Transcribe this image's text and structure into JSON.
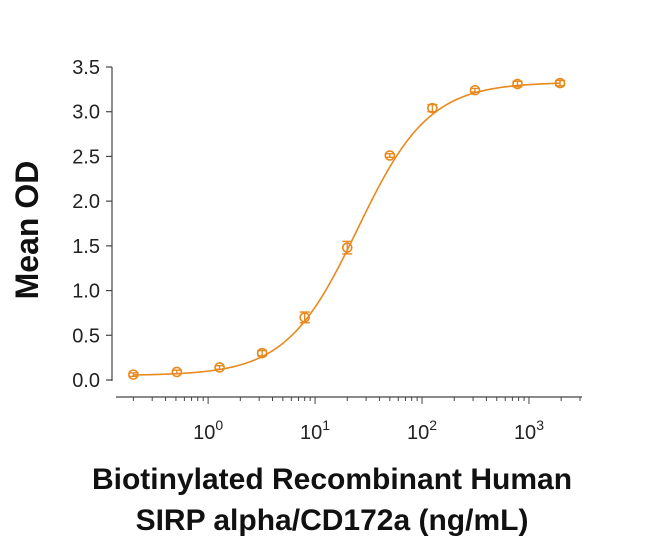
{
  "chart_data": {
    "type": "scatter",
    "title": "",
    "xlabel_line1": "Biotinylated Recombinant Human",
    "xlabel_line2": "SIRP alpha/CD172a (ng/mL)",
    "ylabel": "Mean OD",
    "x_scale": "log",
    "xlim": [
      0.15,
      3000
    ],
    "ylim": [
      0,
      3.5
    ],
    "y_ticks": [
      "0.0",
      "0.5",
      "1.0",
      "1.5",
      "2.0",
      "2.5",
      "3.0",
      "3.5"
    ],
    "x_tick_labels": [
      {
        "base": "10",
        "exp": "0",
        "value": 1
      },
      {
        "base": "10",
        "exp": "1",
        "value": 10
      },
      {
        "base": "10",
        "exp": "2",
        "value": 100
      },
      {
        "base": "10",
        "exp": "3",
        "value": 1000
      }
    ],
    "grid": false,
    "color": "#E8891E",
    "series": [
      {
        "points": [
          {
            "x": 0.2,
            "y": 0.06,
            "err": 0.02
          },
          {
            "x": 0.51,
            "y": 0.09,
            "err": 0.02
          },
          {
            "x": 1.28,
            "y": 0.14,
            "err": 0.02
          },
          {
            "x": 3.2,
            "y": 0.3,
            "err": 0.03
          },
          {
            "x": 8.0,
            "y": 0.7,
            "err": 0.06
          },
          {
            "x": 20.0,
            "y": 1.48,
            "err": 0.07
          },
          {
            "x": 50.0,
            "y": 2.51,
            "err": 0.02
          },
          {
            "x": 125.0,
            "y": 3.04,
            "err": 0.04
          },
          {
            "x": 313.0,
            "y": 3.24,
            "err": 0.02
          },
          {
            "x": 781.0,
            "y": 3.31,
            "err": 0.03
          },
          {
            "x": 1953.0,
            "y": 3.32,
            "err": 0.03
          }
        ],
        "fit": {
          "bottom": 0.05,
          "top": 3.33,
          "ec50": 25.0,
          "hill": 1.3
        }
      }
    ]
  }
}
